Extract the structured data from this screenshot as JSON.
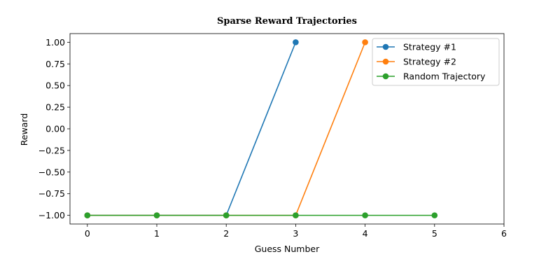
{
  "chart_data": {
    "type": "line",
    "title": "Sparse Reward Trajectories",
    "xlabel": "Guess Number",
    "ylabel": "Reward",
    "xlim": [
      -0.25,
      6
    ],
    "ylim": [
      -1.1,
      1.1
    ],
    "xticks": [
      0,
      1,
      2,
      3,
      4,
      5,
      6
    ],
    "yticks": [
      -1.0,
      -0.75,
      -0.5,
      -0.25,
      0.0,
      0.25,
      0.5,
      0.75,
      1.0
    ],
    "ytick_labels": [
      "−1.00",
      "−0.75",
      "−0.50",
      "−0.25",
      "0.00",
      "0.25",
      "0.50",
      "0.75",
      "1.00"
    ],
    "grid": false,
    "legend_position": "top-right",
    "series": [
      {
        "name": "Strategy #1",
        "color": "#1f77b4",
        "x": [
          0,
          1,
          2,
          3
        ],
        "y": [
          -1,
          -1,
          -1,
          1
        ]
      },
      {
        "name": "Strategy #2",
        "color": "#ff7f0e",
        "x": [
          0,
          1,
          2,
          3,
          4
        ],
        "y": [
          -1,
          -1,
          -1,
          -1,
          1
        ]
      },
      {
        "name": "Random Trajectory",
        "color": "#2ca02c",
        "x": [
          0,
          1,
          2,
          3,
          4,
          5
        ],
        "y": [
          -1,
          -1,
          -1,
          -1,
          -1,
          -1
        ]
      }
    ]
  }
}
